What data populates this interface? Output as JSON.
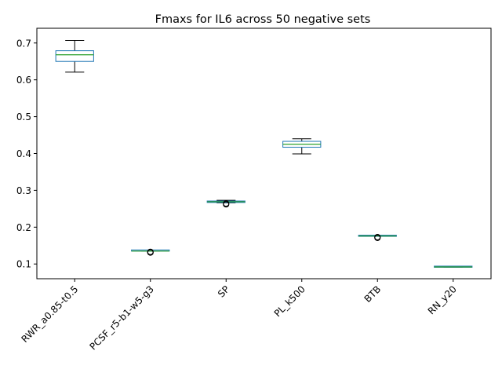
{
  "chart_data": {
    "type": "box",
    "title": "Fmaxs for IL6 across 50 negative sets",
    "xlabel": "",
    "ylabel": "",
    "ylim": [
      0.06,
      0.74
    ],
    "yticks": [
      0.1,
      0.2,
      0.3,
      0.4,
      0.5,
      0.6,
      0.7
    ],
    "ytick_labels": [
      "0.1",
      "0.2",
      "0.3",
      "0.4",
      "0.5",
      "0.6",
      "0.7"
    ],
    "grid": false,
    "categories": [
      "RWR_a0.85-t0.5",
      "PCSF_r5-b1-w5-g3",
      "SP",
      "PL_k500",
      "BTB",
      "RN_y20"
    ],
    "boxes": [
      {
        "whislo": 0.621,
        "q1": 0.65,
        "med": 0.668,
        "q3": 0.679,
        "whishi": 0.707,
        "fliers": []
      },
      {
        "whislo": 0.135,
        "q1": 0.135,
        "med": 0.135,
        "q3": 0.136,
        "whishi": 0.136,
        "fliers": [
          0.131,
          0.132,
          0.133
        ]
      },
      {
        "whislo": 0.266,
        "q1": 0.267,
        "med": 0.269,
        "q3": 0.271,
        "whishi": 0.273,
        "fliers": [
          0.262,
          0.264
        ]
      },
      {
        "whislo": 0.399,
        "q1": 0.417,
        "med": 0.425,
        "q3": 0.433,
        "whishi": 0.44,
        "fliers": []
      },
      {
        "whislo": 0.175,
        "q1": 0.175,
        "med": 0.176,
        "q3": 0.177,
        "whishi": 0.177,
        "fliers": [
          0.171,
          0.173
        ]
      },
      {
        "whislo": 0.091,
        "q1": 0.091,
        "med": 0.092,
        "q3": 0.093,
        "whishi": 0.093,
        "fliers": []
      }
    ],
    "colors": {
      "box": "#1f77b4",
      "median": "#2ca02c",
      "whisker": "#000000",
      "flier": "#000000"
    }
  }
}
